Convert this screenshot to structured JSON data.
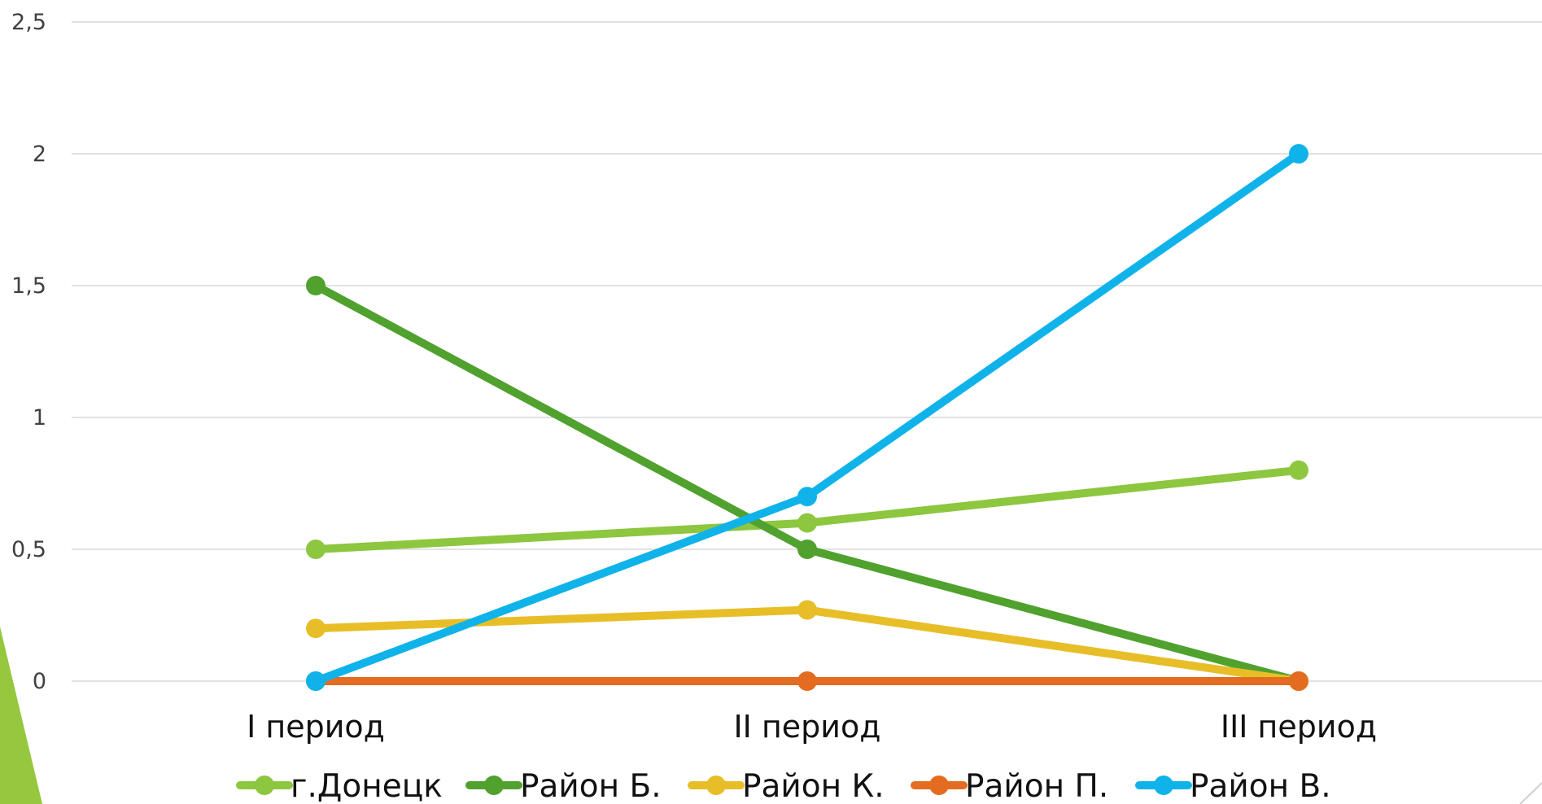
{
  "chart_data": {
    "type": "line",
    "title": "",
    "xlabel": "",
    "ylabel": "",
    "categories": [
      "I период",
      "II период",
      "III период"
    ],
    "y_ticks": [
      "0",
      "0,5",
      "1",
      "1,5",
      "2",
      "2,5"
    ],
    "ylim": [
      0,
      2.5
    ],
    "grid": true,
    "legend_position": "bottom",
    "series": [
      {
        "name": "г.Донецк",
        "color": "#8DC63F",
        "values": [
          0.5,
          0.6,
          0.8
        ]
      },
      {
        "name": "Район Б.",
        "color": "#50A12E",
        "values": [
          1.5,
          0.5,
          0.0
        ]
      },
      {
        "name": "Район К.",
        "color": "#E8BE28",
        "values": [
          0.2,
          0.27,
          0.0
        ]
      },
      {
        "name": "Район П.",
        "color": "#E46C20",
        "values": [
          0.0,
          0.0,
          0.0
        ]
      },
      {
        "name": "Район В.",
        "color": "#0FB3EA",
        "values": [
          0.0,
          0.7,
          2.0
        ]
      }
    ]
  }
}
